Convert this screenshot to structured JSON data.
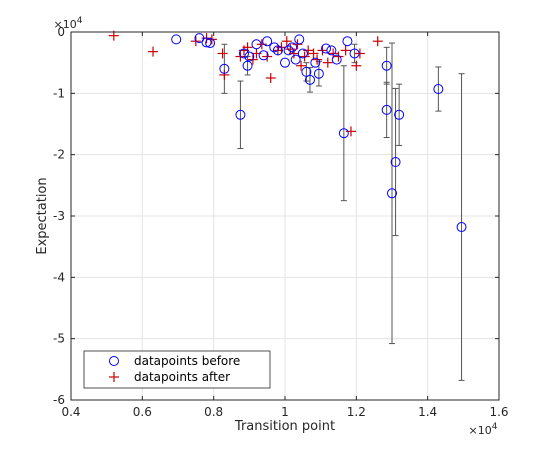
{
  "chart_data": {
    "type": "scatter",
    "xlabel": "Transition point",
    "ylabel": "Expectation",
    "x_exponent_label": "×10",
    "x_exponent_power": "4",
    "y_exponent_label": "×10",
    "y_exponent_power": "4",
    "xlim": [
      4000,
      16000
    ],
    "ylim": [
      -60000,
      0
    ],
    "x_ticks": [
      4000,
      6000,
      8000,
      10000,
      12000,
      14000,
      16000
    ],
    "x_tick_labels": [
      "0.4",
      "0.6",
      "0.8",
      "1",
      "1.2",
      "1.4",
      "1.6"
    ],
    "y_ticks": [
      0,
      -10000,
      -20000,
      -30000,
      -40000,
      -50000,
      -60000
    ],
    "y_tick_labels": [
      "0",
      "-1",
      "-2",
      "-3",
      "-4",
      "-5",
      "-6"
    ],
    "grid": true,
    "legend_position": "bottom-left",
    "colors": {
      "before": "#0000ff",
      "after": "#cc0000",
      "errorbar": "#555555",
      "grid": "#e3e3e3",
      "axes": "#262626"
    },
    "series": [
      {
        "name": "datapoints before",
        "marker": "circle",
        "points": [
          {
            "x": 6950,
            "y": -1200
          },
          {
            "x": 7600,
            "y": -1000
          },
          {
            "x": 7800,
            "y": -1700
          },
          {
            "x": 7900,
            "y": -1800
          },
          {
            "x": 8300,
            "y": -6000,
            "e": 4000
          },
          {
            "x": 8750,
            "y": -13500,
            "e": 5500
          },
          {
            "x": 8850,
            "y": -3500
          },
          {
            "x": 8950,
            "y": -5500,
            "e": 1500
          },
          {
            "x": 9000,
            "y": -4000
          },
          {
            "x": 9200,
            "y": -2000
          },
          {
            "x": 9400,
            "y": -3800
          },
          {
            "x": 9500,
            "y": -1500
          },
          {
            "x": 9700,
            "y": -2500
          },
          {
            "x": 9800,
            "y": -3000
          },
          {
            "x": 10000,
            "y": -5000
          },
          {
            "x": 10100,
            "y": -3000
          },
          {
            "x": 10200,
            "y": -2500
          },
          {
            "x": 10300,
            "y": -4500
          },
          {
            "x": 10400,
            "y": -1200
          },
          {
            "x": 10500,
            "y": -3500
          },
          {
            "x": 10600,
            "y": -6500,
            "e": 1500
          },
          {
            "x": 10700,
            "y": -7800,
            "e": 2000
          },
          {
            "x": 10850,
            "y": -5000
          },
          {
            "x": 10950,
            "y": -6800,
            "e": 2000
          },
          {
            "x": 11150,
            "y": -2700
          },
          {
            "x": 11300,
            "y": -3000
          },
          {
            "x": 11450,
            "y": -4500
          },
          {
            "x": 11650,
            "y": -16500,
            "e": 11000
          },
          {
            "x": 11750,
            "y": -1500
          },
          {
            "x": 11950,
            "y": -3500,
            "e": 1500
          },
          {
            "x": 12850,
            "y": -5500,
            "e": 3000
          },
          {
            "x": 12850,
            "y": -12700,
            "e": 4500
          },
          {
            "x": 13000,
            "y": -26300,
            "e": 24500
          },
          {
            "x": 13100,
            "y": -21200,
            "e": 12000
          },
          {
            "x": 13200,
            "y": -13500,
            "e": 5000
          },
          {
            "x": 14300,
            "y": -9300,
            "e": 3600
          },
          {
            "x": 14950,
            "y": -31800,
            "e": 25000
          }
        ]
      },
      {
        "name": "datapoints after",
        "marker": "plus",
        "points": [
          {
            "x": 5200,
            "y": -600
          },
          {
            "x": 6300,
            "y": -3200
          },
          {
            "x": 7500,
            "y": -1500
          },
          {
            "x": 7800,
            "y": -1000
          },
          {
            "x": 7950,
            "y": -1200
          },
          {
            "x": 8250,
            "y": -3500
          },
          {
            "x": 8300,
            "y": -7000
          },
          {
            "x": 8750,
            "y": -4000
          },
          {
            "x": 8850,
            "y": -3000
          },
          {
            "x": 8950,
            "y": -2500
          },
          {
            "x": 9100,
            "y": -4500
          },
          {
            "x": 9200,
            "y": -3500
          },
          {
            "x": 9350,
            "y": -2000
          },
          {
            "x": 9500,
            "y": -4000
          },
          {
            "x": 9600,
            "y": -7500
          },
          {
            "x": 9800,
            "y": -3000
          },
          {
            "x": 9900,
            "y": -2500
          },
          {
            "x": 10050,
            "y": -1500
          },
          {
            "x": 10150,
            "y": -2800
          },
          {
            "x": 10250,
            "y": -3500
          },
          {
            "x": 10350,
            "y": -2000
          },
          {
            "x": 10450,
            "y": -5500
          },
          {
            "x": 10550,
            "y": -4000
          },
          {
            "x": 10650,
            "y": -3000
          },
          {
            "x": 10800,
            "y": -3500
          },
          {
            "x": 10900,
            "y": -4500
          },
          {
            "x": 11050,
            "y": -3000
          },
          {
            "x": 11200,
            "y": -5000
          },
          {
            "x": 11350,
            "y": -3500
          },
          {
            "x": 11500,
            "y": -4000
          },
          {
            "x": 11700,
            "y": -3000
          },
          {
            "x": 11850,
            "y": -16200
          },
          {
            "x": 12000,
            "y": -5500
          },
          {
            "x": 12100,
            "y": -3500
          },
          {
            "x": 12600,
            "y": -1500
          }
        ]
      }
    ]
  }
}
